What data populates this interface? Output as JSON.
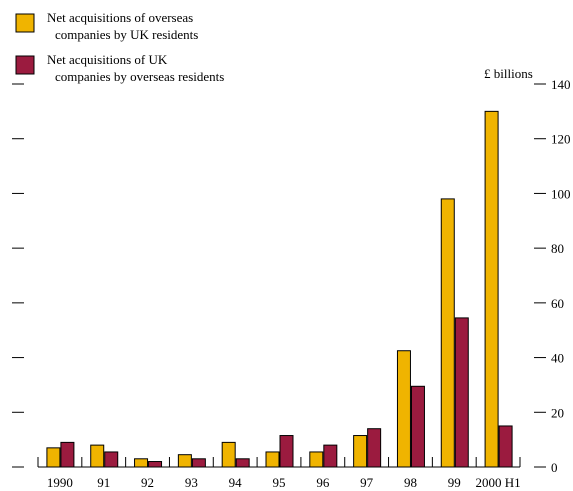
{
  "chart_data": {
    "type": "bar",
    "categories": [
      "1990",
      "91",
      "92",
      "93",
      "94",
      "95",
      "96",
      "97",
      "98",
      "99",
      "2000 H1"
    ],
    "series": [
      {
        "name": "Net acquisitions of overseas companies by UK residents",
        "values": [
          7,
          8,
          3,
          4.5,
          9,
          5.5,
          5.5,
          11.5,
          42.5,
          98,
          130
        ]
      },
      {
        "name": "Net acquisitions of UK companies by overseas residents",
        "values": [
          9,
          5.5,
          2,
          3,
          3,
          11.5,
          8,
          14,
          29.5,
          54.5,
          15
        ]
      }
    ],
    "ylabel": "£ billions",
    "ylim": [
      0,
      140
    ],
    "yticks": [
      0,
      20,
      40,
      60,
      80,
      100,
      120,
      140
    ],
    "grid": false,
    "legend": "top-left",
    "colors": {
      "series1": "#f0b400",
      "series2": "#9b1b3f"
    }
  },
  "legend": {
    "items": [
      {
        "line1": "Net acquisitions of overseas",
        "line2": "companies by UK residents",
        "color": "#f0b400"
      },
      {
        "line1": "Net acquisitions of UK",
        "line2": "companies by overseas residents",
        "color": "#9b1b3f"
      }
    ]
  }
}
